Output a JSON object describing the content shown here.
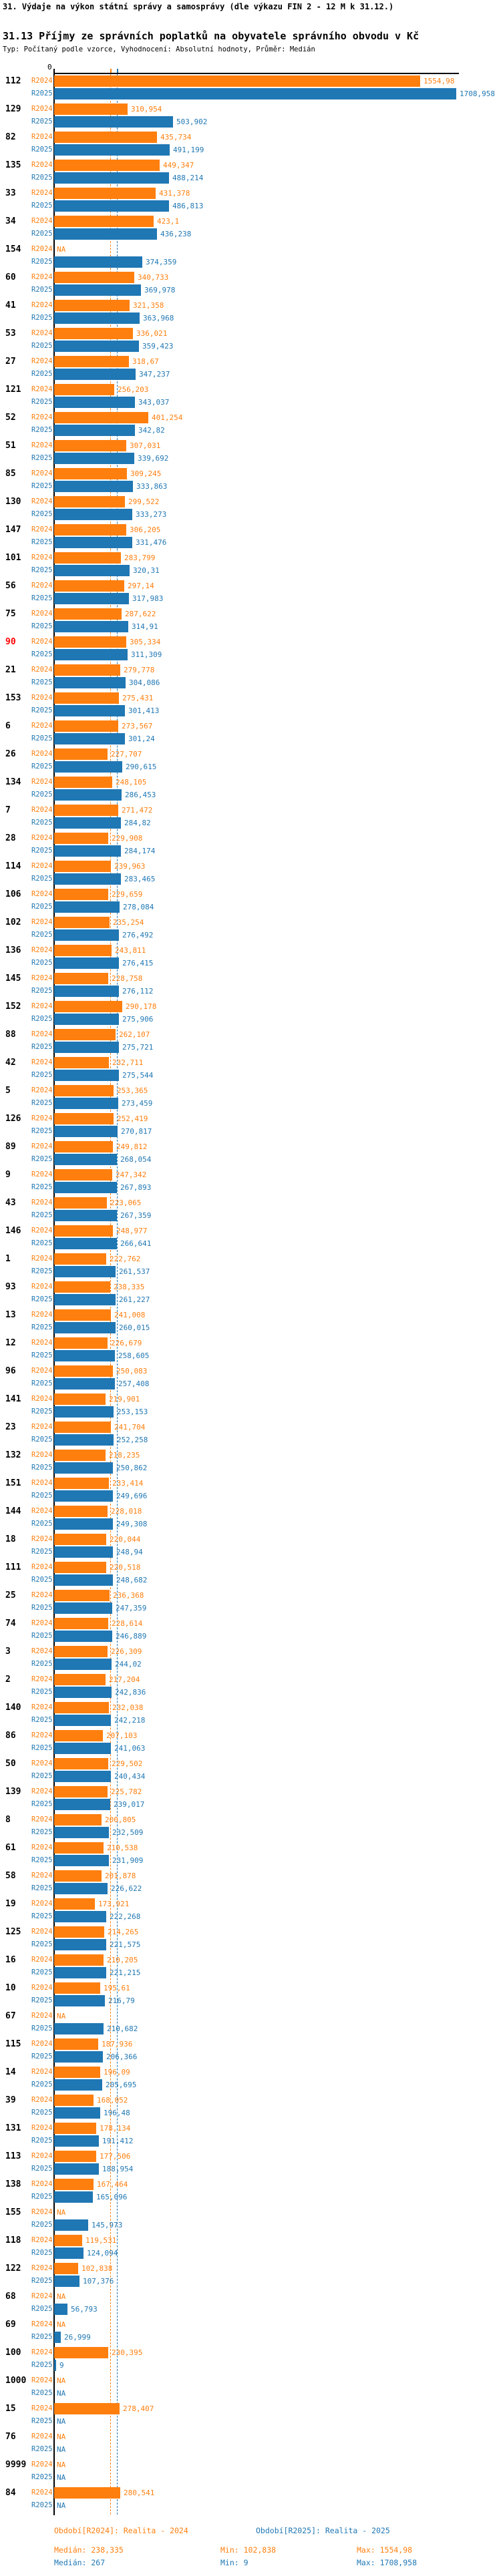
{
  "title": "31. Výdaje na výkon státní správy a samosprávy (dle výkazu FIN 2 - 12 M k 31.12.)",
  "subtitle": "31.13 Příjmy ze správních poplatků na obyvatele správního obvodu v Kč",
  "meta": "Typ: Počítaný podle vzorce, Vyhodnocení: Absolutní hodnoty, Průměr: Medián",
  "na_label": "NA",
  "axis": {
    "zero_label": "0"
  },
  "colors": {
    "r2024": "#FF7F0E",
    "r2025": "#1F77B4",
    "highlight": "#FF0000",
    "axis": "#000000",
    "text": "#000000"
  },
  "footer": {
    "period_2024": "Období[R2024]: Realita - 2024",
    "period_2025": "Období[R2025]: Realita - 2025",
    "stats_2024": {
      "median": "Medián: 238,335",
      "min": "Min: 102,838",
      "max": "Max: 1554,98"
    },
    "stats_2025": {
      "median": "Medián: 267",
      "min": "Min: 9",
      "max": "Max: 1708,958"
    }
  },
  "chart_data": {
    "type": "bar",
    "orientation": "horizontal",
    "xlim": [
      0,
      1720
    ],
    "grid": false,
    "legend_position": "bottom",
    "highlighted_category": "90",
    "median_2024": 238.335,
    "median_2025": 267,
    "min_2024": 102.838,
    "min_2025": 9,
    "max_2024": 1554.98,
    "max_2025": 1708.958,
    "categories": [
      "112",
      "129",
      "82",
      "135",
      "33",
      "34",
      "154",
      "60",
      "41",
      "53",
      "27",
      "121",
      "52",
      "51",
      "85",
      "130",
      "147",
      "101",
      "56",
      "75",
      "90",
      "21",
      "153",
      "6",
      "26",
      "134",
      "7",
      "28",
      "114",
      "106",
      "102",
      "136",
      "145",
      "152",
      "88",
      "42",
      "5",
      "126",
      "89",
      "9",
      "43",
      "146",
      "1",
      "93",
      "13",
      "12",
      "96",
      "141",
      "23",
      "132",
      "151",
      "144",
      "18",
      "111",
      "25",
      "74",
      "3",
      "2",
      "140",
      "86",
      "50",
      "139",
      "8",
      "61",
      "58",
      "19",
      "125",
      "16",
      "10",
      "67",
      "115",
      "14",
      "39",
      "131",
      "113",
      "138",
      "155",
      "118",
      "122",
      "68",
      "69",
      "100",
      "1000",
      "15",
      "76",
      "9999",
      "84"
    ],
    "series": [
      {
        "name": "R2024",
        "values": [
          1554.98,
          310.954,
          435.734,
          449.347,
          431.378,
          423.1,
          null,
          340.733,
          321.358,
          336.021,
          318.67,
          256.203,
          401.254,
          307.031,
          309.245,
          299.522,
          306.205,
          283.799,
          297.14,
          287.622,
          305.334,
          279.778,
          275.431,
          273.567,
          227.707,
          248.105,
          271.472,
          229.908,
          239.963,
          229.659,
          235.254,
          243.811,
          228.758,
          290.178,
          262.107,
          232.711,
          253.365,
          252.419,
          249.812,
          247.342,
          223.065,
          248.977,
          222.762,
          238.335,
          241.008,
          226.679,
          250.083,
          219.901,
          241.704,
          218.235,
          233.414,
          228.018,
          220.044,
          220.518,
          236.368,
          228.614,
          226.309,
          217.204,
          232.038,
          207.103,
          229.502,
          225.782,
          200.805,
          210.538,
          201.878,
          173.921,
          214.265,
          210.205,
          195.61,
          null,
          187.936,
          196.09,
          168.052,
          178.134,
          177.506,
          167.464,
          null,
          119.531,
          102.838,
          null,
          null,
          230.395,
          null,
          278.407,
          null,
          null,
          280.541
        ]
      },
      {
        "name": "R2025",
        "values": [
          1708.958,
          503.902,
          491.199,
          488.214,
          486.813,
          436.238,
          374.359,
          369.978,
          363.968,
          359.423,
          347.237,
          343.037,
          342.82,
          339.692,
          333.863,
          333.273,
          331.476,
          320.31,
          317.983,
          314.91,
          311.309,
          304.086,
          301.413,
          301.24,
          290.615,
          286.453,
          284.82,
          284.174,
          283.465,
          278.084,
          276.492,
          276.415,
          276.112,
          275.906,
          275.721,
          275.544,
          273.459,
          270.817,
          268.054,
          267.893,
          267.359,
          266.641,
          261.537,
          261.227,
          260.015,
          258.605,
          257.408,
          253.153,
          252.258,
          250.862,
          249.696,
          249.308,
          248.94,
          248.682,
          247.359,
          246.889,
          244.02,
          242.836,
          242.218,
          241.063,
          240.434,
          239.017,
          232.509,
          231.909,
          226.622,
          222.268,
          221.575,
          221.215,
          216.79,
          210.682,
          206.366,
          205.695,
          196.48,
          191.412,
          188.954,
          165.096,
          145.973,
          124.094,
          107.376,
          56.793,
          26.999,
          9,
          null,
          null,
          null,
          null,
          null
        ]
      }
    ]
  }
}
